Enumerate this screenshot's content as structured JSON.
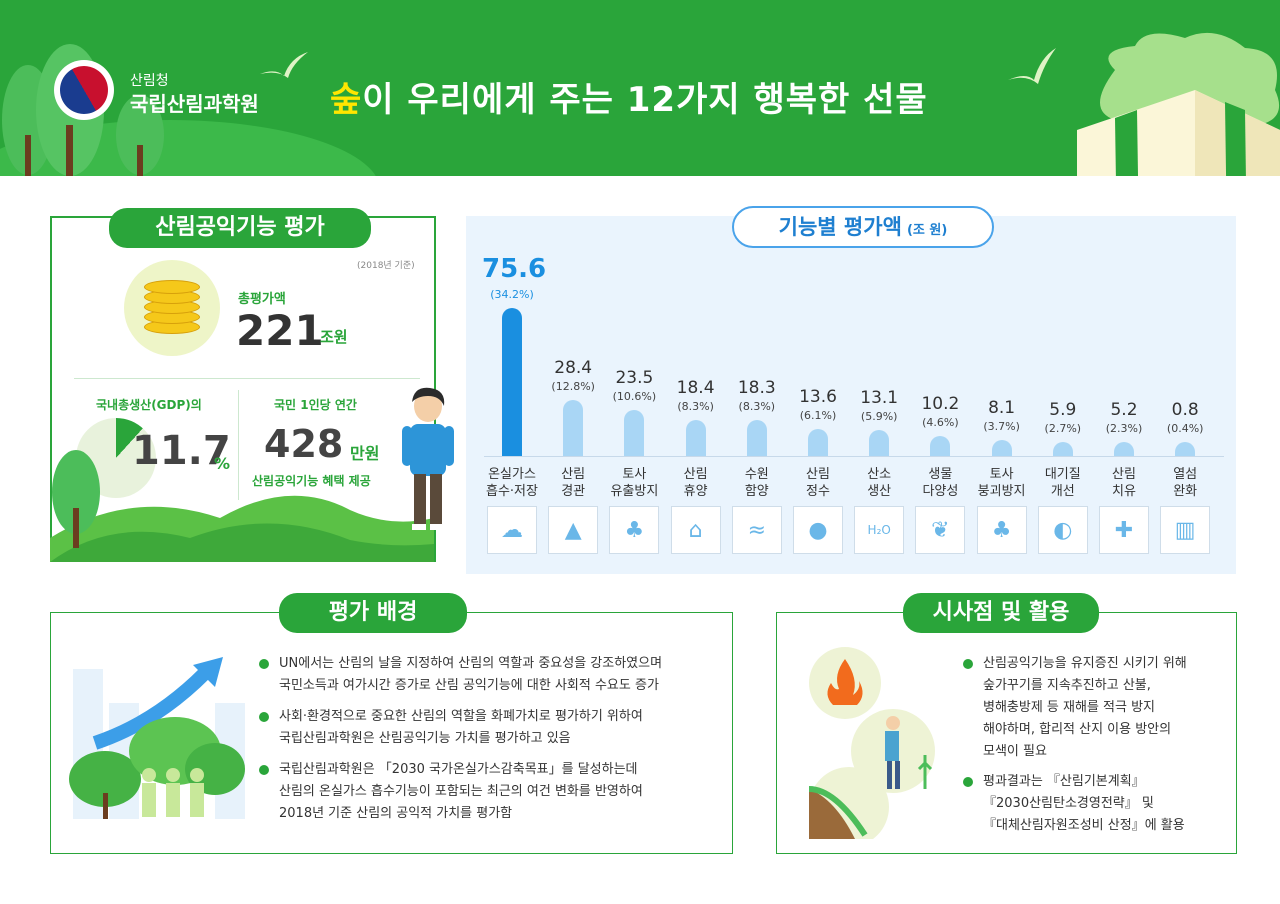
{
  "header": {
    "org_small": "산림청",
    "org_name": "국립산림과학원",
    "title_highlight": "숲",
    "title_rest": "이 우리에게 주는 12가지 행복한 선물",
    "colors": {
      "header_green": "#2aa53a",
      "title_highlight": "#ffe600"
    }
  },
  "left_panel": {
    "title": "산림공익기능 평가",
    "basis": "(2018년 기준)",
    "total_label": "총평가액",
    "total_value": "221",
    "total_unit": "조원",
    "gdp_label": "국내총생산(GDP)의",
    "gdp_value": "11.7",
    "gdp_unit": "%",
    "gdp_fraction": 0.117,
    "per_capita_label": "국민 1인당 연간",
    "per_capita_value": "428",
    "per_capita_unit": "만원",
    "per_capita_desc": "산림공익기능 혜택 제공"
  },
  "chart_data": {
    "type": "bar",
    "title": "기능별 평가액",
    "unit": "(조 원)",
    "categories": [
      [
        "온실가스",
        "흡수·저장"
      ],
      [
        "산림",
        "경관"
      ],
      [
        "토사",
        "유출방지"
      ],
      [
        "산림",
        "휴양"
      ],
      [
        "수원",
        "함양"
      ],
      [
        "산림",
        "정수"
      ],
      [
        "산소",
        "생산"
      ],
      [
        "생물",
        "다양성"
      ],
      [
        "토사",
        "붕괴방지"
      ],
      [
        "대기질",
        "개선"
      ],
      [
        "산림",
        "치유"
      ],
      [
        "열섬",
        "완화"
      ]
    ],
    "values": [
      75.6,
      28.4,
      23.5,
      18.4,
      18.3,
      13.6,
      13.1,
      10.2,
      8.1,
      5.9,
      5.2,
      0.8
    ],
    "value_labels": [
      "75.6",
      "28.4",
      "23.5",
      "18.4",
      "18.3",
      "13.6",
      "13.1",
      "10.2",
      "8.1",
      "5.9",
      "5.2",
      "0.8"
    ],
    "percent_labels": [
      "(34.2%)",
      "(12.8%)",
      "(10.6%)",
      "(8.3%)",
      "(8.3%)",
      "(6.1%)",
      "(5.9%)",
      "(4.6%)",
      "(3.7%)",
      "(2.7%)",
      "(2.3%)",
      "(0.4%)"
    ],
    "icons": [
      "factory-cloud-icon",
      "mountain-icon",
      "forest-icon",
      "cabin-icon",
      "water-wave-icon",
      "water-drop-icon",
      "h2o-icon",
      "sprout-icon",
      "forest-slope-icon",
      "earth-icon",
      "medical-cross-icon",
      "city-icon"
    ],
    "icon_texts": [
      "",
      "",
      "",
      "",
      "",
      "",
      "H₂O",
      "",
      "",
      "",
      "",
      ""
    ],
    "colors": {
      "highlight": "#1a8fe0",
      "bar": "#a9d6f5"
    }
  },
  "background_panel": {
    "title": "평가 배경",
    "items": [
      [
        "UN에서는 산림의 날을 지정하여 산림의 역할과 중요성을 강조하였으며",
        "국민소득과 여가시간 증가로 산림 공익기능에 대한 사회적 수요도 증가"
      ],
      [
        "사회·환경적으로 중요한 산림의 역할을 화폐가치로 평가하기 위하여",
        "국립산림과학원은 산림공익기능 가치를 평가하고 있음"
      ],
      [
        "국립산림과학원은 「2030 국가온실가스감축목표」를 달성하는데",
        "산림의 온실가스 흡수기능이 포함되는 최근의 여건 변화를 반영하여",
        "2018년 기준 산림의 공익적 가치를 평가함"
      ]
    ]
  },
  "implications_panel": {
    "title": "시사점 및 활용",
    "items": [
      [
        "산림공익기능을 유지증진 시키기 위해",
        "숲가꾸기를 지속추진하고 산불,",
        "병해충방제 등 재해를 적극 방지",
        "해야하며, 합리적 산지 이용 방안의",
        "모색이 필요"
      ],
      [
        "평과결과는 『산림기본계획』",
        "『2030산림탄소경영전략』 및",
        "『대체산림자원조성비 산정』에 활용"
      ]
    ]
  }
}
